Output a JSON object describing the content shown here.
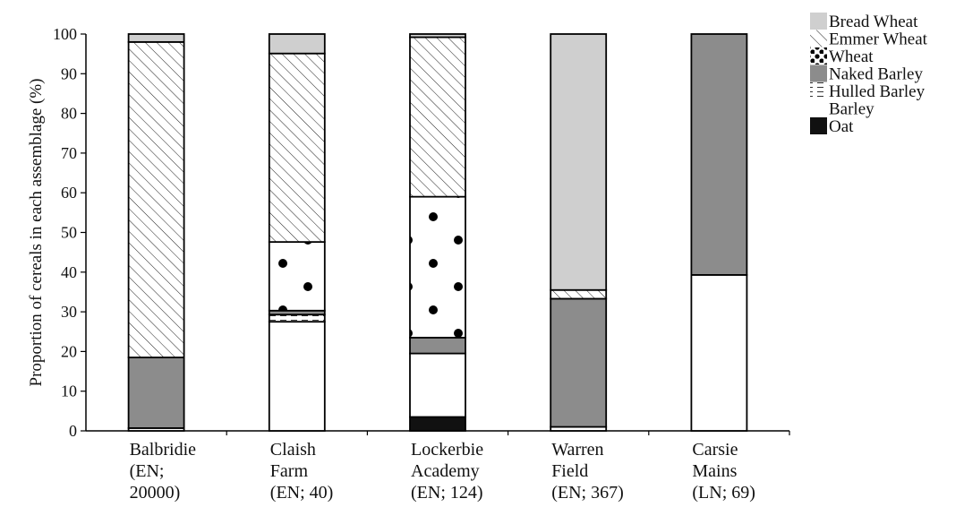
{
  "chart_data": {
    "type": "bar",
    "stacked": true,
    "ylabel": "Proportion of cereals in each assemblage (%)",
    "xlabel": "",
    "ylim": [
      0,
      100
    ],
    "yticks": [
      0,
      10,
      20,
      30,
      40,
      50,
      60,
      70,
      80,
      90,
      100
    ],
    "grid": false,
    "legend_position": "top-right",
    "categories": [
      [
        "Balbridie",
        "(EN;",
        "20000)"
      ],
      [
        "Claish",
        "Farm",
        "(EN; 40)"
      ],
      [
        "Lockerbie",
        "Academy",
        "(EN; 124)"
      ],
      [
        "Warren",
        "Field",
        "(EN; 367)"
      ],
      [
        "Carsie",
        "Mains",
        "(LN; 69)"
      ]
    ],
    "series": [
      {
        "name": "Oat",
        "pattern": "solid-black",
        "values": [
          0,
          0,
          3.5,
          0,
          0
        ]
      },
      {
        "name": "Barley",
        "pattern": "white",
        "values": [
          0.7,
          27.5,
          16,
          1,
          39.3
        ]
      },
      {
        "name": "Hulled Barley",
        "pattern": "dashes",
        "values": [
          0,
          1.8,
          0,
          0,
          0
        ]
      },
      {
        "name": "Naked Barley",
        "pattern": "dark-grey",
        "values": [
          17.8,
          1,
          4,
          32.3,
          60.7
        ]
      },
      {
        "name": "Wheat",
        "pattern": "dots",
        "values": [
          0,
          17.3,
          35.5,
          0,
          0
        ]
      },
      {
        "name": "Emmer Wheat",
        "pattern": "diagonal-hatch",
        "values": [
          79.5,
          47.5,
          40.2,
          2.2,
          0
        ]
      },
      {
        "name": "Bread Wheat",
        "pattern": "light-grey",
        "values": [
          2,
          4.9,
          0.8,
          64.5,
          0
        ]
      }
    ],
    "legend_order": [
      "Bread Wheat",
      "Emmer Wheat",
      "Wheat",
      "Naked Barley",
      "Hulled Barley",
      "Barley",
      "Oat"
    ]
  }
}
